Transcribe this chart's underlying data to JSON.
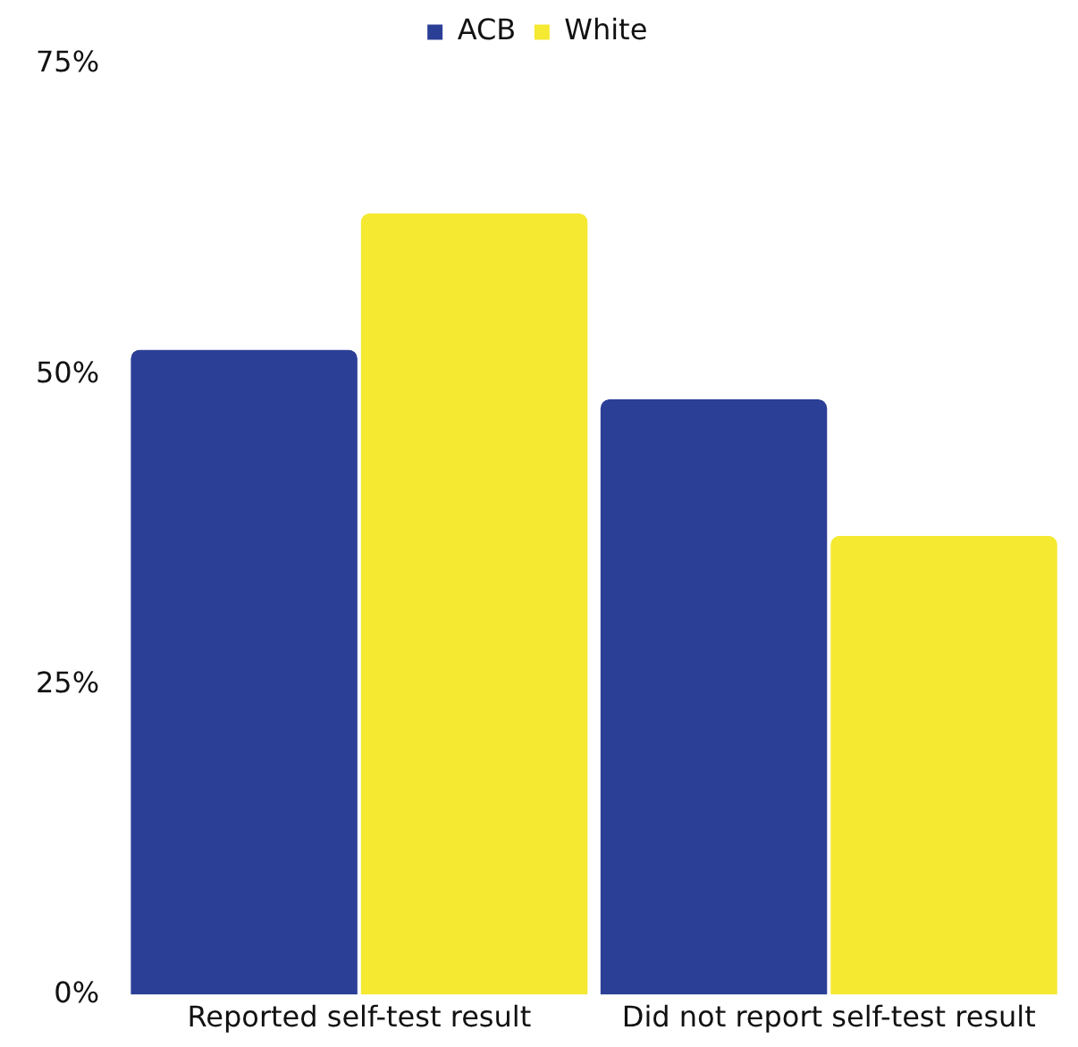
{
  "chart_data": {
    "type": "bar",
    "categories": [
      "Reported self-test result",
      "Did not report self-test result"
    ],
    "series": [
      {
        "name": "ACB",
        "color": "#2b3f96",
        "values": [
          52,
          48
        ]
      },
      {
        "name": "White",
        "color": "#f5e931",
        "values": [
          63,
          37
        ]
      }
    ],
    "ylim": [
      0,
      75
    ],
    "yticks": [
      {
        "value": 0,
        "label": "0%"
      },
      {
        "value": 25,
        "label": "25%"
      },
      {
        "value": 50,
        "label": "50%"
      },
      {
        "value": 75,
        "label": "75%"
      }
    ],
    "grid": false,
    "legend": "top"
  }
}
